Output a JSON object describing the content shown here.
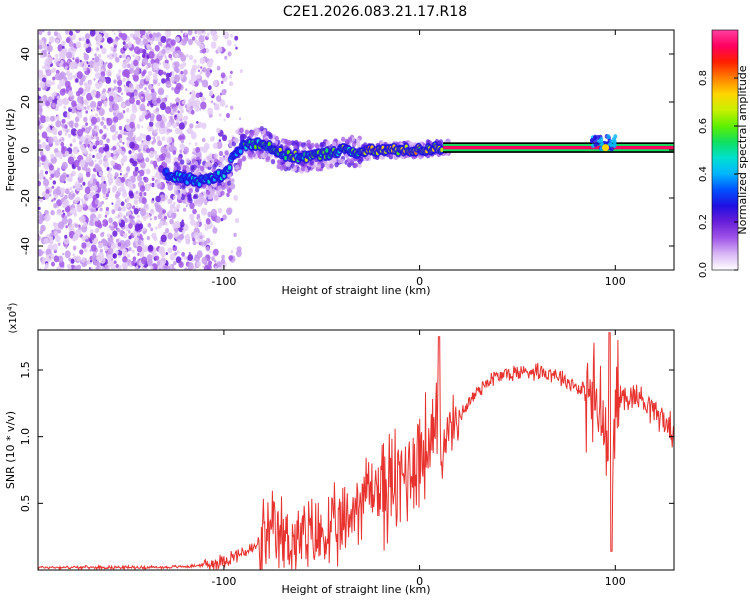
{
  "title": "C2E1.2026.083.21.17.R18",
  "chart_data": [
    {
      "type": "heatmap",
      "name": "spectrogram",
      "xlabel": "Height of straight line (km)",
      "ylabel": "Frequency (Hz)",
      "xlim": [
        -195,
        130
      ],
      "ylim": [
        -50,
        50
      ],
      "xticks": [
        -100,
        0,
        100
      ],
      "xtick_labels": [
        "-100",
        "0",
        "100"
      ],
      "yticks": [
        -40,
        -20,
        0,
        20,
        40
      ],
      "ytick_labels": [
        "-40",
        "-20",
        "0",
        "20",
        "40"
      ],
      "signal_ridge": {
        "height_km": [
          -130,
          -120,
          -110,
          -100,
          -95,
          -90,
          -80,
          -70,
          -60,
          -50,
          -40,
          -30,
          -20,
          -10,
          0,
          10,
          20,
          40,
          60,
          80,
          90,
          95,
          100,
          130
        ],
        "frequency_hz": [
          -10,
          -12,
          -13,
          -10,
          -3,
          2,
          3,
          -2,
          -3,
          -2,
          0,
          -1,
          0,
          0,
          0,
          1,
          1,
          1,
          1,
          1,
          1,
          3,
          1,
          1
        ]
      },
      "colorbar": {
        "label": "Normalized spectral amplitude",
        "range": [
          0,
          1
        ],
        "ticks": [
          0.0,
          0.2,
          0.4,
          0.6,
          0.8
        ],
        "tick_labels": [
          "0.0",
          "0.2",
          "0.4",
          "0.6",
          "0.8"
        ],
        "colors": [
          "#ffffff",
          "#d9b8f5",
          "#a055e8",
          "#6a1fd9",
          "#2010e0",
          "#0050ff",
          "#00b4ff",
          "#00e0d0",
          "#10e060",
          "#60f000",
          "#c8f000",
          "#ffd400",
          "#ff8000",
          "#ff2000",
          "#ff0060",
          "#ff40a0"
        ]
      }
    },
    {
      "type": "line",
      "name": "snr",
      "xlabel": "Height of straight line (km)",
      "ylabel": "SNR (10 * v/v)",
      "multiplier_label": "(x10",
      "multiplier_exp": "4",
      "multiplier_close": ")",
      "xlim": [
        -195,
        130
      ],
      "ylim": [
        0,
        1.8
      ],
      "xticks": [
        -100,
        0,
        100
      ],
      "xtick_labels": [
        "-100",
        "0",
        "100"
      ],
      "yticks": [
        0.5,
        1.0,
        1.5
      ],
      "ytick_labels": [
        "0.5",
        "1.0",
        "1.5"
      ],
      "color": "#e8322e",
      "x": [
        -195,
        -160,
        -130,
        -115,
        -105,
        -95,
        -85,
        -80,
        -75,
        -70,
        -65,
        -60,
        -55,
        -50,
        -45,
        -40,
        -35,
        -30,
        -25,
        -20,
        -15,
        -10,
        -5,
        0,
        5,
        8,
        10,
        12,
        15,
        20,
        25,
        30,
        35,
        40,
        45,
        50,
        55,
        60,
        65,
        70,
        75,
        80,
        85,
        90,
        95,
        97,
        98,
        100,
        105,
        110,
        115,
        120,
        125,
        130
      ],
      "y": [
        0.02,
        0.02,
        0.02,
        0.03,
        0.05,
        0.1,
        0.16,
        0.22,
        0.25,
        0.24,
        0.23,
        0.22,
        0.24,
        0.26,
        0.28,
        0.3,
        0.42,
        0.55,
        0.62,
        0.6,
        0.62,
        0.65,
        0.78,
        0.88,
        0.92,
        0.95,
        1.0,
        0.98,
        1.05,
        1.15,
        1.25,
        1.35,
        1.42,
        1.45,
        1.47,
        1.48,
        1.49,
        1.5,
        1.48,
        1.47,
        1.42,
        1.38,
        1.33,
        1.25,
        1.05,
        0.75,
        0.55,
        1.25,
        1.32,
        1.3,
        1.28,
        1.2,
        1.12,
        1.02
      ]
    }
  ]
}
